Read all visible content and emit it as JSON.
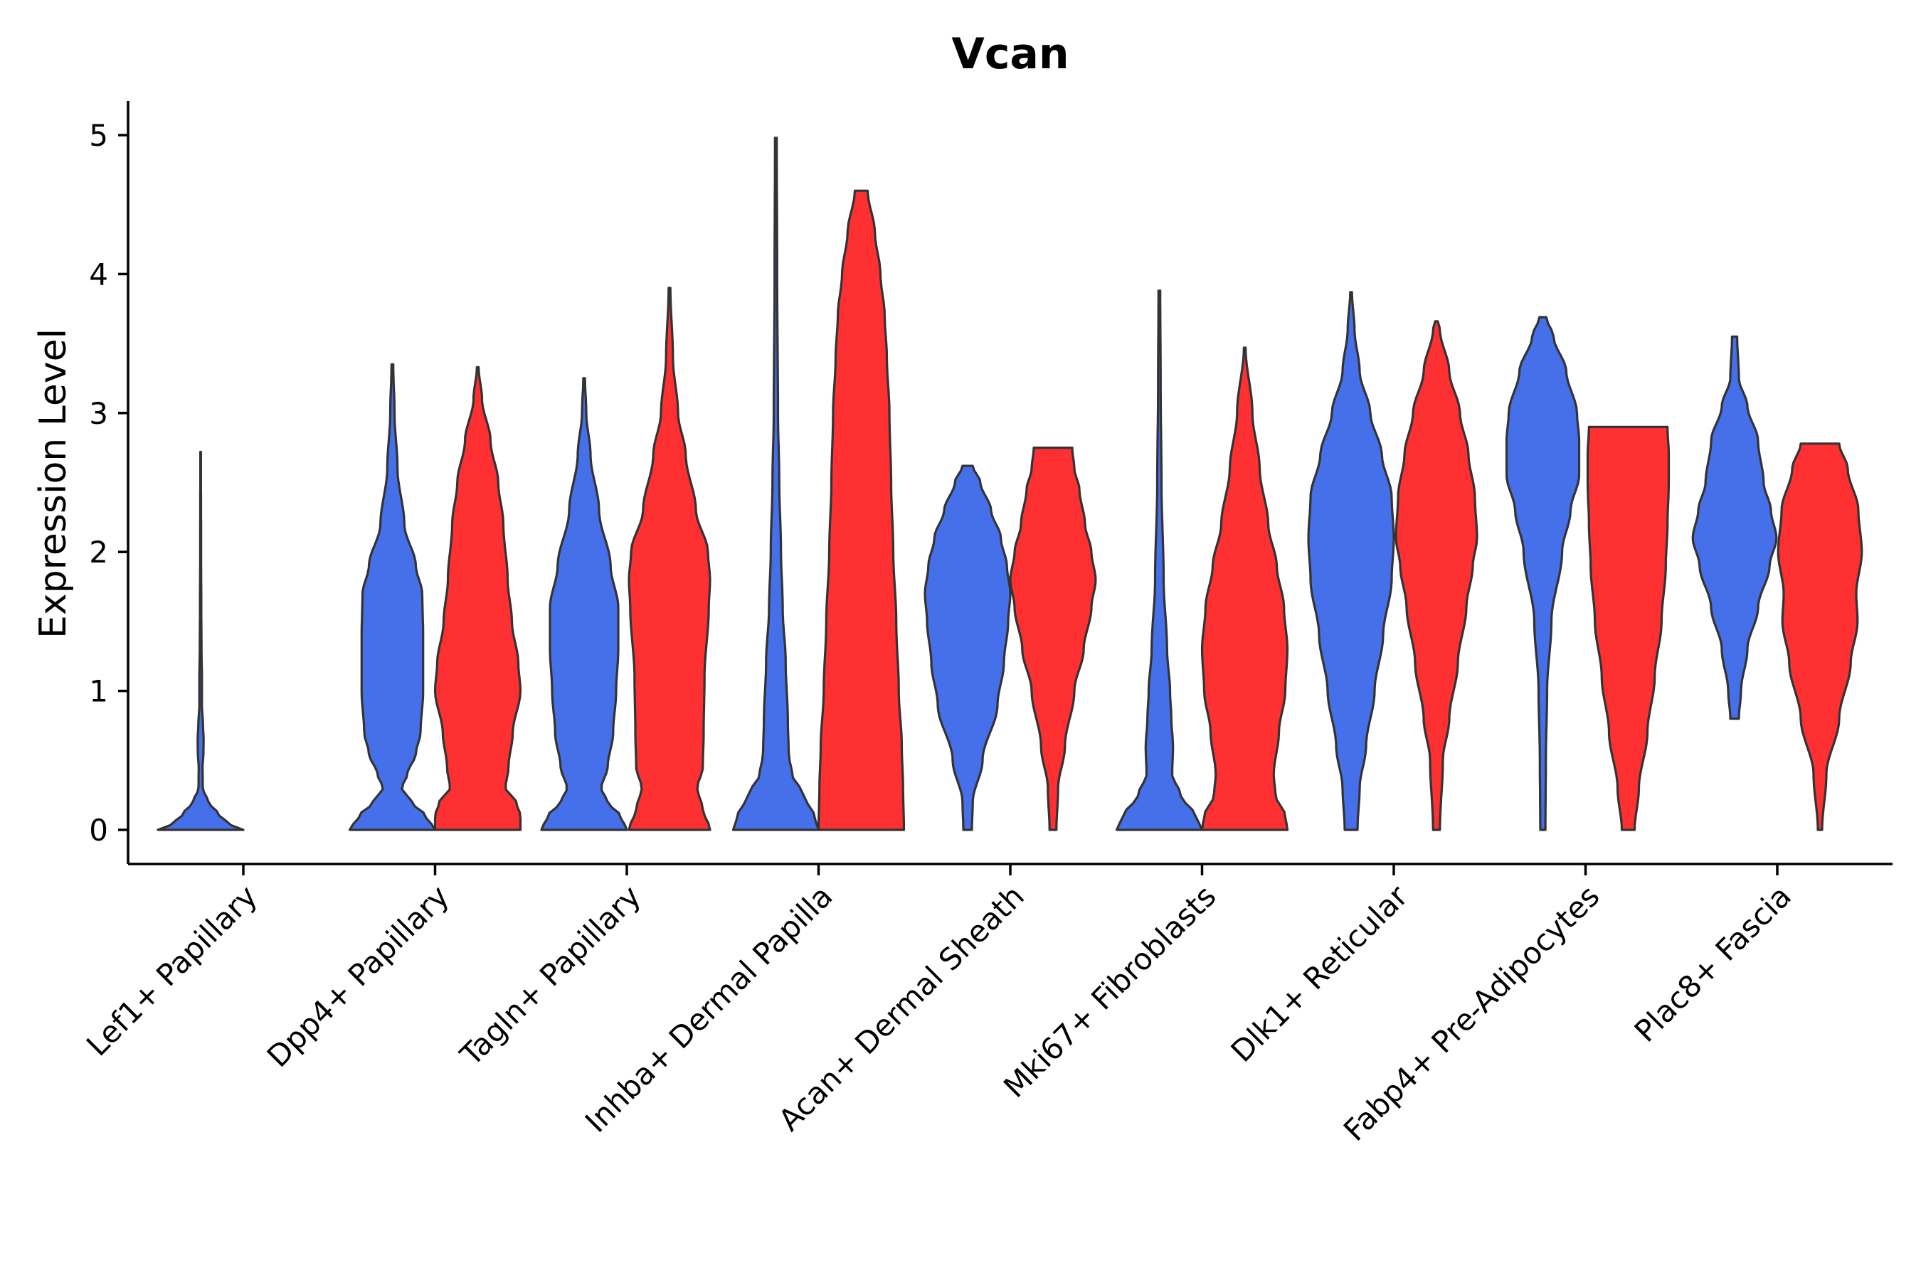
{
  "chart_data": {
    "type": "violin",
    "title": "Vcan",
    "xlabel": "",
    "ylabel": "Expression Level",
    "ylim": [
      -0.25,
      5.25
    ],
    "yticks": [
      0,
      1,
      2,
      3,
      4,
      5
    ],
    "grid": false,
    "legend": "none",
    "colors": {
      "blue": "#4570EA",
      "red": "#FE3031"
    },
    "categories": [
      "Lef1+ Papillary",
      "Dpp4+ Papillary",
      "Tagln+ Papillary",
      "Inhba+ Dermal Papilla",
      "Acan+ Dermal Sheath",
      "Mki67+ Fibroblasts",
      "Dlk1+ Reticular",
      "Fabp4+ Pre-Adipocytes",
      "Plac8+ Fascia"
    ],
    "violins": [
      {
        "category": "Lef1+ Papillary",
        "group": "blue",
        "max": 2.72,
        "profile": [
          [
            0,
            1.0
          ],
          [
            0.05,
            0.62
          ],
          [
            0.12,
            0.4
          ],
          [
            0.2,
            0.18
          ],
          [
            0.3,
            0.05
          ],
          [
            0.45,
            0.045
          ],
          [
            0.55,
            0.065
          ],
          [
            0.65,
            0.07
          ],
          [
            0.75,
            0.055
          ],
          [
            0.9,
            0.03
          ],
          [
            1.1,
            0.03
          ],
          [
            1.3,
            0.02
          ],
          [
            1.6,
            0.015
          ],
          [
            2.0,
            0.01
          ],
          [
            2.72,
            0.006
          ]
        ]
      },
      {
        "category": "Dpp4+ Papillary",
        "group": "blue",
        "max": 3.35,
        "profile": [
          [
            0,
            1.0
          ],
          [
            0.1,
            0.78
          ],
          [
            0.2,
            0.45
          ],
          [
            0.3,
            0.22
          ],
          [
            0.4,
            0.35
          ],
          [
            0.55,
            0.55
          ],
          [
            0.7,
            0.66
          ],
          [
            1.0,
            0.72
          ],
          [
            1.4,
            0.72
          ],
          [
            1.7,
            0.7
          ],
          [
            1.9,
            0.55
          ],
          [
            2.2,
            0.28
          ],
          [
            2.6,
            0.12
          ],
          [
            3.0,
            0.05
          ],
          [
            3.35,
            0.02
          ]
        ]
      },
      {
        "category": "Dpp4+ Papillary",
        "group": "red",
        "max": 3.33,
        "profile": [
          [
            0,
            1.0
          ],
          [
            0.1,
            1.0
          ],
          [
            0.2,
            0.9
          ],
          [
            0.3,
            0.65
          ],
          [
            0.45,
            0.72
          ],
          [
            0.7,
            0.82
          ],
          [
            1.0,
            1.0
          ],
          [
            1.2,
            0.95
          ],
          [
            1.5,
            0.8
          ],
          [
            1.8,
            0.7
          ],
          [
            2.2,
            0.6
          ],
          [
            2.5,
            0.48
          ],
          [
            2.8,
            0.3
          ],
          [
            3.1,
            0.1
          ],
          [
            3.33,
            0.02
          ]
        ]
      },
      {
        "category": "Tagln+ Papillary",
        "group": "blue",
        "max": 3.25,
        "profile": [
          [
            0,
            1.0
          ],
          [
            0.1,
            0.85
          ],
          [
            0.2,
            0.55
          ],
          [
            0.3,
            0.4
          ],
          [
            0.45,
            0.55
          ],
          [
            0.7,
            0.68
          ],
          [
            1.0,
            0.75
          ],
          [
            1.3,
            0.8
          ],
          [
            1.6,
            0.8
          ],
          [
            1.9,
            0.62
          ],
          [
            2.3,
            0.35
          ],
          [
            2.7,
            0.15
          ],
          [
            3.0,
            0.05
          ],
          [
            3.25,
            0.02
          ]
        ]
      },
      {
        "category": "Tagln+ Papillary",
        "group": "red",
        "max": 3.9,
        "profile": [
          [
            0,
            0.95
          ],
          [
            0.15,
            0.78
          ],
          [
            0.3,
            0.65
          ],
          [
            0.45,
            0.78
          ],
          [
            0.7,
            0.8
          ],
          [
            1.1,
            0.82
          ],
          [
            1.6,
            0.92
          ],
          [
            1.8,
            0.95
          ],
          [
            2.0,
            0.9
          ],
          [
            2.3,
            0.62
          ],
          [
            2.7,
            0.38
          ],
          [
            3.0,
            0.2
          ],
          [
            3.4,
            0.08
          ],
          [
            3.9,
            0.02
          ]
        ]
      },
      {
        "category": "Inhba+ Dermal Papilla",
        "group": "blue",
        "max": 4.98,
        "profile": [
          [
            0,
            1.0
          ],
          [
            0.1,
            0.9
          ],
          [
            0.25,
            0.65
          ],
          [
            0.4,
            0.38
          ],
          [
            0.55,
            0.3
          ],
          [
            0.8,
            0.28
          ],
          [
            1.2,
            0.23
          ],
          [
            1.6,
            0.16
          ],
          [
            2.0,
            0.12
          ],
          [
            2.5,
            0.08
          ],
          [
            3.0,
            0.05
          ],
          [
            4.0,
            0.03
          ],
          [
            4.98,
            0.02
          ]
        ]
      },
      {
        "category": "Inhba+ Dermal Papilla",
        "group": "red",
        "max": 4.6,
        "profile": [
          [
            0,
            1.0
          ],
          [
            0.3,
            0.98
          ],
          [
            0.6,
            0.95
          ],
          [
            1.0,
            0.88
          ],
          [
            1.5,
            0.82
          ],
          [
            2.0,
            0.75
          ],
          [
            2.5,
            0.7
          ],
          [
            3.0,
            0.66
          ],
          [
            3.4,
            0.6
          ],
          [
            3.7,
            0.55
          ],
          [
            4.0,
            0.45
          ],
          [
            4.3,
            0.32
          ],
          [
            4.6,
            0.15
          ]
        ]
      },
      {
        "category": "Acan+ Dermal Sheath",
        "group": "blue",
        "max": 2.62,
        "profile": [
          [
            0,
            0.1
          ],
          [
            0.2,
            0.12
          ],
          [
            0.5,
            0.35
          ],
          [
            0.9,
            0.7
          ],
          [
            1.2,
            0.85
          ],
          [
            1.5,
            0.95
          ],
          [
            1.7,
            1.0
          ],
          [
            1.9,
            0.92
          ],
          [
            2.1,
            0.78
          ],
          [
            2.3,
            0.55
          ],
          [
            2.5,
            0.3
          ],
          [
            2.62,
            0.12
          ]
        ]
      },
      {
        "category": "Acan+ Dermal Sheath",
        "group": "red",
        "max": 2.75,
        "profile": [
          [
            0,
            0.08
          ],
          [
            0.3,
            0.12
          ],
          [
            0.6,
            0.28
          ],
          [
            1.0,
            0.5
          ],
          [
            1.3,
            0.72
          ],
          [
            1.6,
            0.9
          ],
          [
            1.8,
            1.0
          ],
          [
            2.0,
            0.9
          ],
          [
            2.2,
            0.75
          ],
          [
            2.45,
            0.62
          ],
          [
            2.6,
            0.5
          ],
          [
            2.75,
            0.45
          ]
        ]
      },
      {
        "category": "Mki67+ Fibroblasts",
        "group": "blue",
        "max": 3.88,
        "profile": [
          [
            0,
            1.0
          ],
          [
            0.1,
            0.85
          ],
          [
            0.25,
            0.5
          ],
          [
            0.4,
            0.3
          ],
          [
            0.6,
            0.32
          ],
          [
            0.8,
            0.28
          ],
          [
            1.0,
            0.25
          ],
          [
            1.3,
            0.18
          ],
          [
            1.8,
            0.1
          ],
          [
            2.5,
            0.05
          ],
          [
            3.2,
            0.03
          ],
          [
            3.88,
            0.02
          ]
        ]
      },
      {
        "category": "Mki67+ Fibroblasts",
        "group": "red",
        "max": 3.47,
        "profile": [
          [
            0,
            1.0
          ],
          [
            0.1,
            0.95
          ],
          [
            0.25,
            0.72
          ],
          [
            0.4,
            0.68
          ],
          [
            0.7,
            0.8
          ],
          [
            1.0,
            0.95
          ],
          [
            1.3,
            1.0
          ],
          [
            1.6,
            0.92
          ],
          [
            1.9,
            0.75
          ],
          [
            2.2,
            0.55
          ],
          [
            2.6,
            0.35
          ],
          [
            3.0,
            0.18
          ],
          [
            3.47,
            0.02
          ]
        ]
      },
      {
        "category": "Dlk1+ Reticular",
        "group": "blue",
        "max": 3.87,
        "profile": [
          [
            0,
            0.15
          ],
          [
            0.3,
            0.2
          ],
          [
            0.6,
            0.35
          ],
          [
            1.0,
            0.55
          ],
          [
            1.4,
            0.75
          ],
          [
            1.8,
            0.95
          ],
          [
            2.1,
            1.0
          ],
          [
            2.4,
            0.95
          ],
          [
            2.7,
            0.72
          ],
          [
            3.0,
            0.45
          ],
          [
            3.3,
            0.2
          ],
          [
            3.6,
            0.08
          ],
          [
            3.87,
            0.02
          ]
        ]
      },
      {
        "category": "Dlk1+ Reticular",
        "group": "red",
        "max": 3.66,
        "profile": [
          [
            0,
            0.08
          ],
          [
            0.5,
            0.15
          ],
          [
            0.8,
            0.3
          ],
          [
            1.2,
            0.5
          ],
          [
            1.6,
            0.7
          ],
          [
            1.9,
            0.85
          ],
          [
            2.1,
            0.95
          ],
          [
            2.4,
            0.9
          ],
          [
            2.7,
            0.75
          ],
          [
            3.0,
            0.55
          ],
          [
            3.3,
            0.3
          ],
          [
            3.6,
            0.08
          ],
          [
            3.66,
            0.03
          ]
        ]
      },
      {
        "category": "Fabp4+ Pre-Adipocytes",
        "group": "blue",
        "max": 3.69,
        "profile": [
          [
            0,
            0.06
          ],
          [
            0.5,
            0.07
          ],
          [
            1.0,
            0.1
          ],
          [
            1.5,
            0.2
          ],
          [
            2.0,
            0.45
          ],
          [
            2.3,
            0.65
          ],
          [
            2.55,
            0.85
          ],
          [
            2.8,
            0.85
          ],
          [
            3.0,
            0.8
          ],
          [
            3.3,
            0.55
          ],
          [
            3.55,
            0.25
          ],
          [
            3.69,
            0.08
          ]
        ]
      },
      {
        "category": "Fabp4+ Pre-Adipocytes",
        "group": "red",
        "max": 2.9,
        "profile": [
          [
            0,
            0.15
          ],
          [
            0.3,
            0.25
          ],
          [
            0.7,
            0.45
          ],
          [
            1.1,
            0.62
          ],
          [
            1.5,
            0.78
          ],
          [
            1.9,
            0.88
          ],
          [
            2.2,
            0.92
          ],
          [
            2.5,
            0.95
          ],
          [
            2.7,
            0.95
          ],
          [
            2.9,
            0.92
          ]
        ]
      },
      {
        "category": "Plac8+ Fascia",
        "group": "blue",
        "max": 3.55,
        "profile": [
          [
            0.8,
            0.1
          ],
          [
            1.0,
            0.15
          ],
          [
            1.3,
            0.3
          ],
          [
            1.6,
            0.55
          ],
          [
            1.9,
            0.82
          ],
          [
            2.1,
            0.98
          ],
          [
            2.3,
            0.85
          ],
          [
            2.5,
            0.68
          ],
          [
            2.8,
            0.55
          ],
          [
            3.05,
            0.3
          ],
          [
            3.25,
            0.1
          ],
          [
            3.55,
            0.06
          ]
        ]
      },
      {
        "category": "Plac8+ Fascia",
        "group": "red",
        "max": 2.78,
        "profile": [
          [
            0,
            0.05
          ],
          [
            0.4,
            0.15
          ],
          [
            0.8,
            0.45
          ],
          [
            1.2,
            0.72
          ],
          [
            1.5,
            0.88
          ],
          [
            1.7,
            0.85
          ],
          [
            2.0,
            0.98
          ],
          [
            2.3,
            0.9
          ],
          [
            2.6,
            0.65
          ],
          [
            2.78,
            0.45
          ]
        ]
      }
    ]
  }
}
